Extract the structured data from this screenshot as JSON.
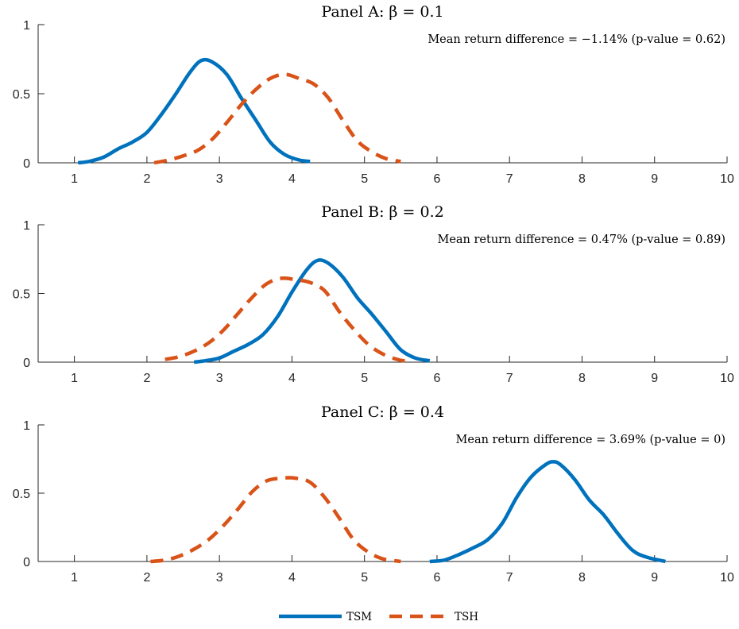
{
  "chart_data": [
    {
      "type": "line",
      "title": "Panel A: β = 0.1",
      "annotation": "Mean return difference = −1.14% (p-value = 0.62)",
      "xlim": [
        0.5,
        10
      ],
      "ylim": [
        0,
        1
      ],
      "xticks": [
        "1",
        "2",
        "3",
        "4",
        "5",
        "6",
        "7",
        "8",
        "9",
        "10"
      ],
      "yticks": [
        "0",
        "0.5",
        "1"
      ],
      "grid": false,
      "series": [
        {
          "name": "TSM",
          "style": "solid",
          "color": "#0072bd",
          "x": [
            1.05,
            1.2,
            1.4,
            1.6,
            1.8,
            2.0,
            2.2,
            2.4,
            2.6,
            2.75,
            2.9,
            3.1,
            3.3,
            3.5,
            3.7,
            3.9,
            4.1,
            4.25
          ],
          "y": [
            0.0,
            0.01,
            0.04,
            0.1,
            0.15,
            0.22,
            0.35,
            0.5,
            0.66,
            0.74,
            0.73,
            0.64,
            0.47,
            0.31,
            0.15,
            0.06,
            0.02,
            0.01
          ]
        },
        {
          "name": "TSH",
          "style": "dashed",
          "color": "#d95319",
          "x": [
            2.1,
            2.3,
            2.5,
            2.7,
            2.9,
            3.1,
            3.3,
            3.5,
            3.7,
            3.9,
            4.1,
            4.3,
            4.5,
            4.7,
            4.9,
            5.1,
            5.3,
            5.5
          ],
          "y": [
            0.0,
            0.02,
            0.05,
            0.09,
            0.17,
            0.29,
            0.42,
            0.53,
            0.61,
            0.64,
            0.61,
            0.57,
            0.47,
            0.31,
            0.16,
            0.08,
            0.03,
            0.01
          ]
        }
      ]
    },
    {
      "type": "line",
      "title": "Panel B: β = 0.2",
      "annotation": "Mean return difference = 0.47% (p-value = 0.89)",
      "xlim": [
        0.5,
        10
      ],
      "ylim": [
        0,
        1
      ],
      "xticks": [
        "1",
        "2",
        "3",
        "4",
        "5",
        "6",
        "7",
        "8",
        "9",
        "10"
      ],
      "yticks": [
        "0",
        "0.5",
        "1"
      ],
      "grid": false,
      "series": [
        {
          "name": "TSM",
          "style": "solid",
          "color": "#0072bd",
          "x": [
            2.65,
            2.8,
            3.0,
            3.2,
            3.4,
            3.6,
            3.8,
            4.0,
            4.2,
            4.35,
            4.5,
            4.7,
            4.9,
            5.1,
            5.3,
            5.5,
            5.7,
            5.9
          ],
          "y": [
            0.0,
            0.01,
            0.03,
            0.08,
            0.13,
            0.2,
            0.33,
            0.51,
            0.67,
            0.74,
            0.72,
            0.62,
            0.47,
            0.35,
            0.22,
            0.09,
            0.03,
            0.01
          ]
        },
        {
          "name": "TSH",
          "style": "dashed",
          "color": "#d95319",
          "x": [
            2.25,
            2.45,
            2.65,
            2.85,
            3.05,
            3.25,
            3.45,
            3.65,
            3.85,
            4.05,
            4.25,
            4.45,
            4.65,
            4.85,
            5.05,
            5.25,
            5.45,
            5.65
          ],
          "y": [
            0.02,
            0.04,
            0.08,
            0.14,
            0.23,
            0.35,
            0.47,
            0.57,
            0.61,
            0.6,
            0.58,
            0.52,
            0.37,
            0.24,
            0.13,
            0.06,
            0.02,
            0.0
          ]
        }
      ]
    },
    {
      "type": "line",
      "title": "Panel C: β = 0.4",
      "annotation": "Mean return difference = 3.69% (p-value = 0)",
      "xlim": [
        0.5,
        10
      ],
      "ylim": [
        0,
        1
      ],
      "xticks": [
        "1",
        "2",
        "3",
        "4",
        "5",
        "6",
        "7",
        "8",
        "9",
        "10"
      ],
      "yticks": [
        "0",
        "0.5",
        "1"
      ],
      "grid": false,
      "series": [
        {
          "name": "TSM",
          "style": "solid",
          "color": "#0072bd",
          "x": [
            5.9,
            6.1,
            6.3,
            6.5,
            6.7,
            6.9,
            7.1,
            7.3,
            7.5,
            7.6,
            7.7,
            7.9,
            8.1,
            8.3,
            8.5,
            8.7,
            8.9,
            9.15
          ],
          "y": [
            0.0,
            0.01,
            0.05,
            0.1,
            0.16,
            0.28,
            0.47,
            0.62,
            0.71,
            0.73,
            0.71,
            0.6,
            0.45,
            0.34,
            0.2,
            0.08,
            0.03,
            0.0
          ]
        },
        {
          "name": "TSH",
          "style": "dashed",
          "color": "#d95319",
          "x": [
            2.05,
            2.25,
            2.45,
            2.65,
            2.85,
            3.05,
            3.25,
            3.45,
            3.65,
            3.85,
            4.05,
            4.25,
            4.45,
            4.65,
            4.85,
            5.05,
            5.25,
            5.5
          ],
          "y": [
            0.0,
            0.01,
            0.04,
            0.09,
            0.16,
            0.26,
            0.38,
            0.51,
            0.59,
            0.61,
            0.61,
            0.58,
            0.47,
            0.32,
            0.16,
            0.07,
            0.02,
            0.0
          ]
        }
      ]
    }
  ],
  "legend": {
    "placement": "bottom-center",
    "items": [
      {
        "label": "TSM",
        "style": "solid",
        "color": "#0072bd"
      },
      {
        "label": "TSH",
        "style": "dashed",
        "color": "#d95319"
      }
    ]
  }
}
